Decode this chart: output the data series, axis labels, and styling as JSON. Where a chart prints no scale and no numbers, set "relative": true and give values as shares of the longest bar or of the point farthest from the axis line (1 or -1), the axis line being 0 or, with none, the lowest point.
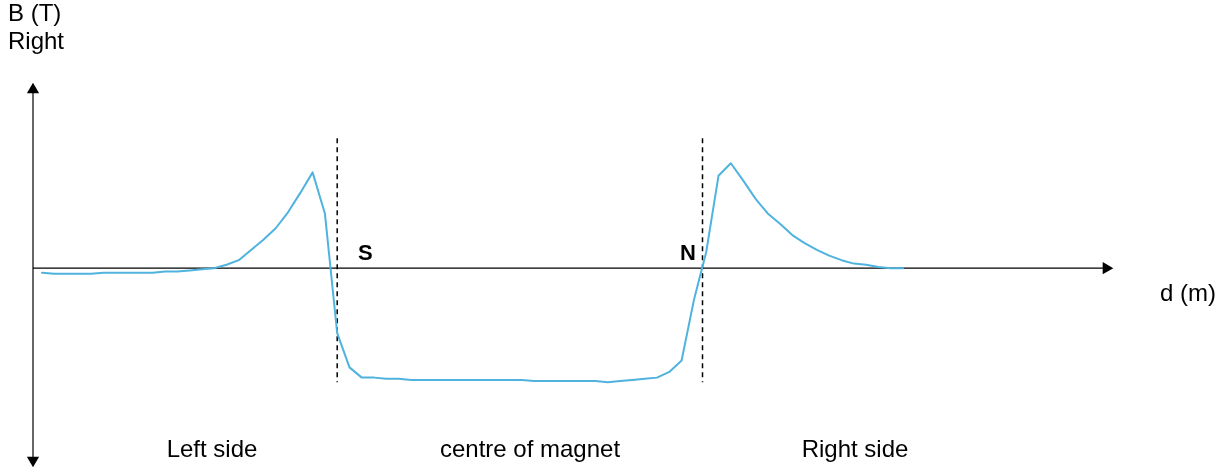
{
  "chart_data": {
    "type": "line",
    "relative": true,
    "ylabel": "B (T)\nRight",
    "color": "#4fb3de",
    "categories": [
      null,
      null,
      null,
      null,
      null,
      null,
      null,
      null,
      null,
      null,
      null,
      null,
      null,
      null,
      null,
      null,
      null,
      null,
      null,
      null,
      null,
      null,
      null,
      null,
      null,
      null,
      null,
      null,
      null,
      null,
      null,
      null,
      null,
      null,
      null,
      null,
      null,
      null,
      null,
      null,
      null,
      null,
      null,
      null,
      null,
      null,
      null,
      null,
      null,
      null,
      null,
      null,
      null,
      null,
      null,
      null,
      null,
      null,
      null,
      null,
      null,
      null,
      null,
      null,
      null,
      null,
      null,
      null,
      null,
      null,
      null
    ],
    "values": [
      -0.04,
      -0.05,
      -0.05,
      -0.05,
      -0.05,
      -0.04,
      -0.04,
      -0.04,
      -0.04,
      -0.04,
      -0.03,
      -0.03,
      -0.02,
      -0.01,
      0,
      0.03,
      0.07,
      0.16,
      0.25,
      0.35,
      0.49,
      0.66,
      0.84,
      0.48,
      -0.57,
      -0.87,
      -0.96,
      -0.96,
      -0.97,
      -0.97,
      -0.98,
      -0.98,
      -0.98,
      -0.98,
      -0.98,
      -0.98,
      -0.98,
      -0.98,
      -0.98,
      -0.98,
      -0.99,
      -0.99,
      -0.99,
      -0.99,
      -0.99,
      -0.99,
      -1,
      -0.99,
      -0.98,
      -0.97,
      -0.96,
      -0.91,
      -0.81,
      -0.28,
      0.14,
      0.81,
      0.92,
      0.77,
      0.61,
      0.48,
      0.39,
      0.29,
      0.22,
      0.16,
      0.11,
      0.07,
      0.04,
      0.03,
      0.01,
      0,
      0
    ],
    "annotations": [
      "S",
      "N",
      "Left side",
      "centre of magnet",
      "Right side",
      "d (m)"
    ]
  }
}
